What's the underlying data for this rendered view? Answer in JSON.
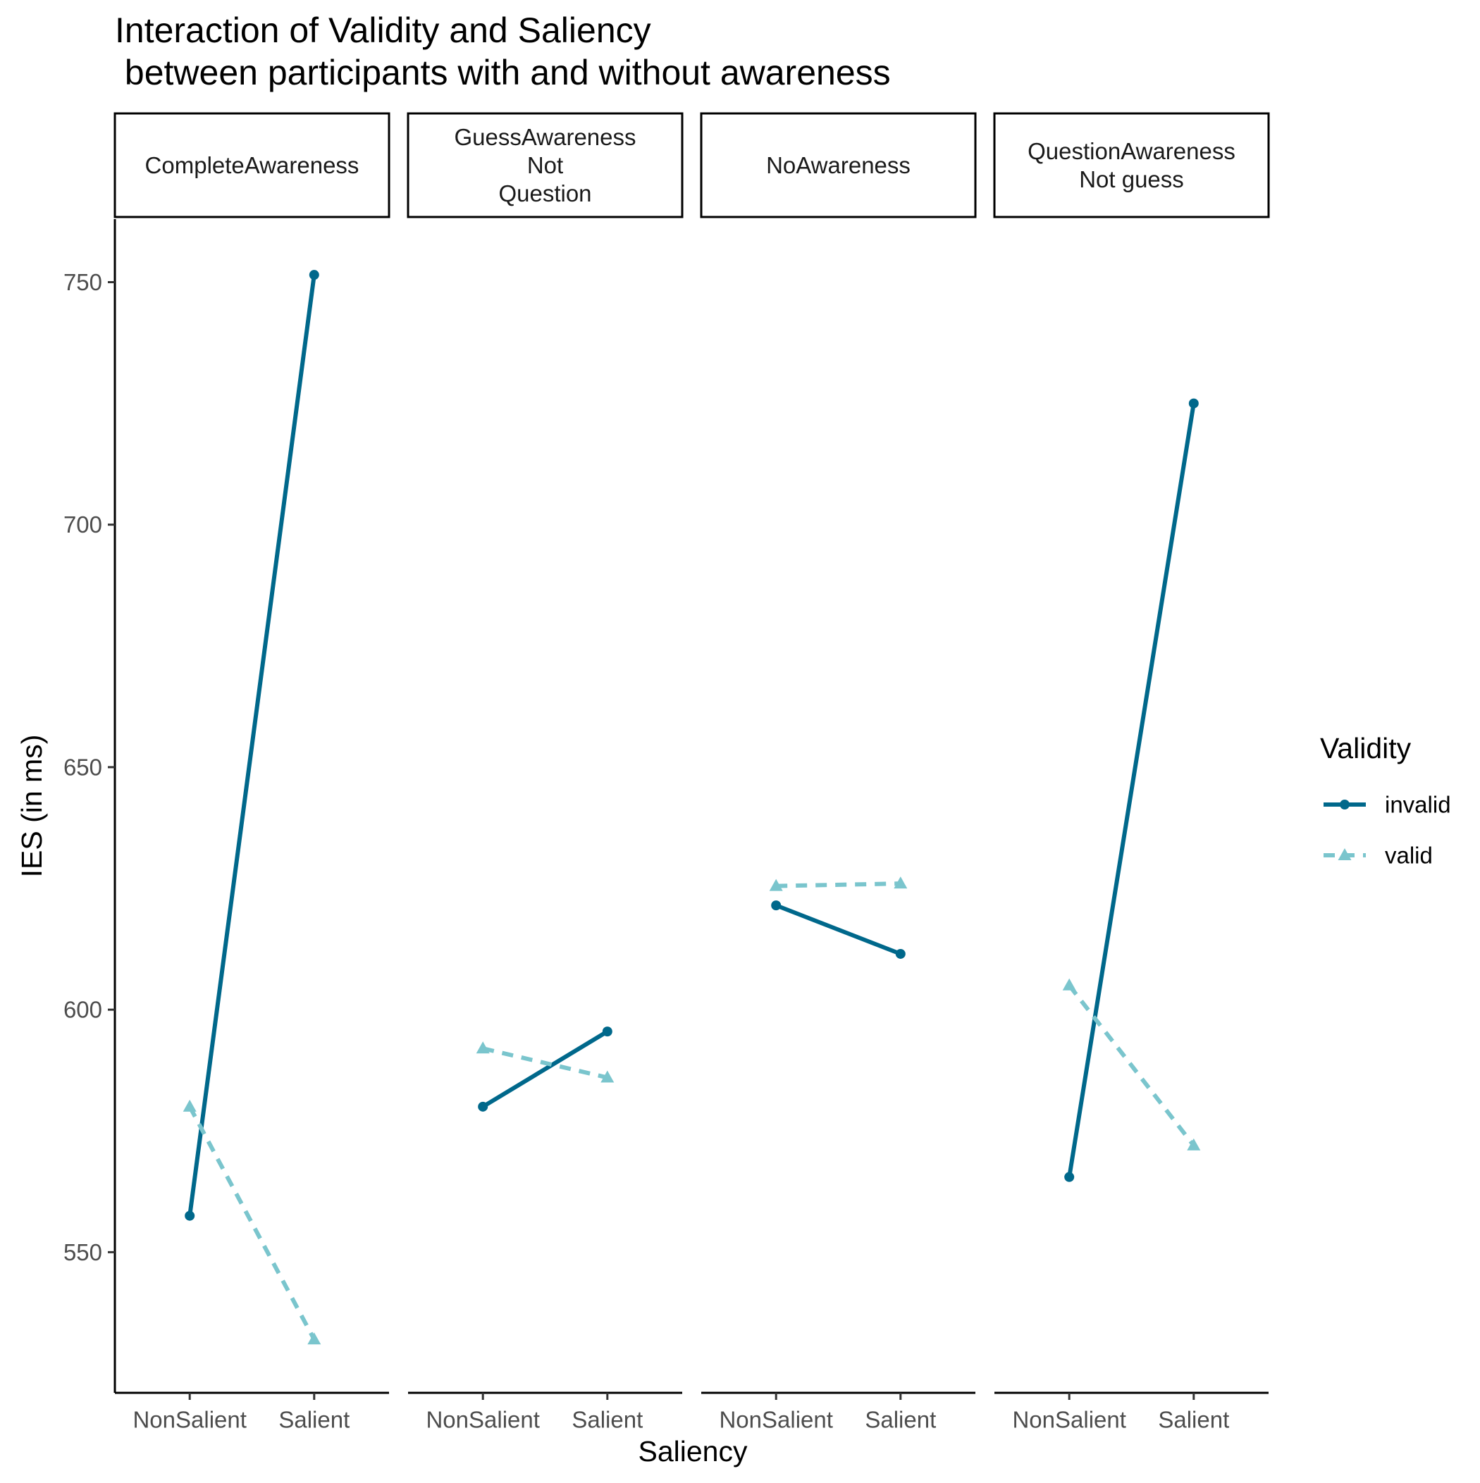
{
  "chart_data": {
    "type": "line",
    "title": "Interaction of Validity and Saliency\n between participants with and without awareness",
    "xlabel": "Saliency",
    "ylabel": "IES (in ms)",
    "categories": [
      "NonSalient",
      "Salient"
    ],
    "ylim": [
      521,
      763
    ],
    "yticks": [
      550,
      600,
      650,
      700,
      750
    ],
    "grid": false,
    "legend": {
      "title": "Validity",
      "position": "right",
      "entries": [
        {
          "label": "invalid",
          "color": "#00688B",
          "linestyle": "solid",
          "marker": "circle"
        },
        {
          "label": "valid",
          "color": "#7AC5CD",
          "linestyle": "dashed",
          "marker": "triangle"
        }
      ]
    },
    "panels": [
      {
        "label": "CompleteAwareness",
        "series": [
          {
            "name": "invalid",
            "values": [
              557.5,
              751.5
            ]
          },
          {
            "name": "valid",
            "values": [
              580,
              532
            ]
          }
        ]
      },
      {
        "label": "GuessAwareness\nNot\nQuestion",
        "series": [
          {
            "name": "invalid",
            "values": [
              580,
              595.5
            ]
          },
          {
            "name": "valid",
            "values": [
              592,
              586
            ]
          }
        ]
      },
      {
        "label": "NoAwareness",
        "series": [
          {
            "name": "invalid",
            "values": [
              621.5,
              611.5
            ]
          },
          {
            "name": "valid",
            "values": [
              625.5,
              626
            ]
          }
        ]
      },
      {
        "label": "QuestionAwareness\nNot guess",
        "series": [
          {
            "name": "invalid",
            "values": [
              565.5,
              725
            ]
          },
          {
            "name": "valid",
            "values": [
              605,
              572
            ]
          }
        ]
      }
    ]
  }
}
